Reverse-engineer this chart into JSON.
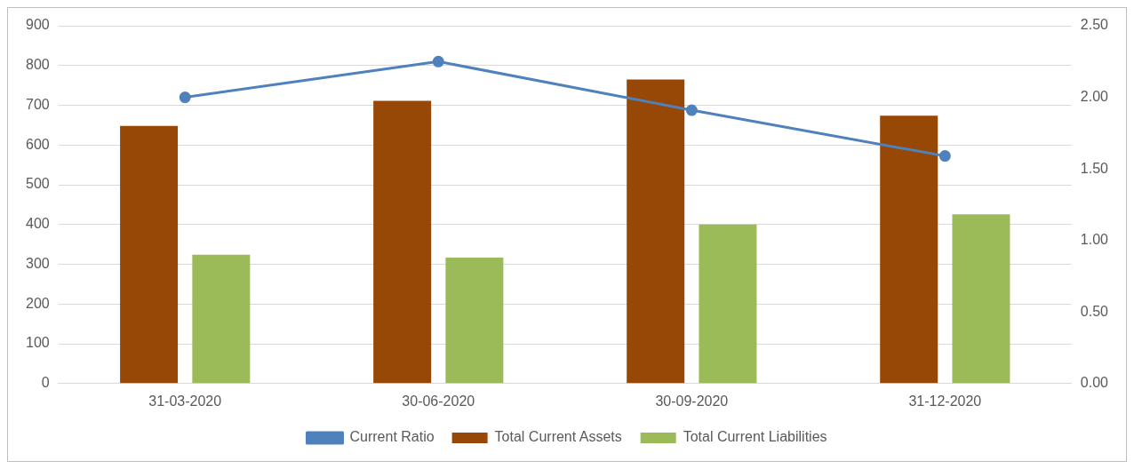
{
  "chart_data": {
    "type": "bar",
    "categories": [
      "31-03-2020",
      "30-06-2020",
      "30-09-2020",
      "31-12-2020"
    ],
    "series": [
      {
        "name": "Total Current Assets",
        "color": "#974706",
        "values": [
          648,
          711,
          765,
          674
        ]
      },
      {
        "name": "Total Current Liabilities",
        "color": "#9bbb59",
        "values": [
          324,
          317,
          400,
          426
        ]
      },
      {
        "name": "Current Ratio",
        "type": "line",
        "axis": "y2",
        "color": "#4f81bd",
        "marker": "circle",
        "values": [
          2.0,
          2.25,
          1.91,
          1.59
        ]
      }
    ],
    "ylim": [
      0,
      900
    ],
    "yticks": [
      0,
      100,
      200,
      300,
      400,
      500,
      600,
      700,
      800,
      900
    ],
    "y2lim": [
      0,
      2.5
    ],
    "y2ticks": [
      {
        "value": 0,
        "label": "0.00"
      },
      {
        "value": 0.5,
        "label": "0.50"
      },
      {
        "value": 1,
        "label": "1.00"
      },
      {
        "value": 1.5,
        "label": "1.50"
      },
      {
        "value": 2,
        "label": "2.00"
      },
      {
        "value": 2.5,
        "label": "2.50"
      }
    ],
    "grid": "y",
    "legend": "bottom"
  }
}
